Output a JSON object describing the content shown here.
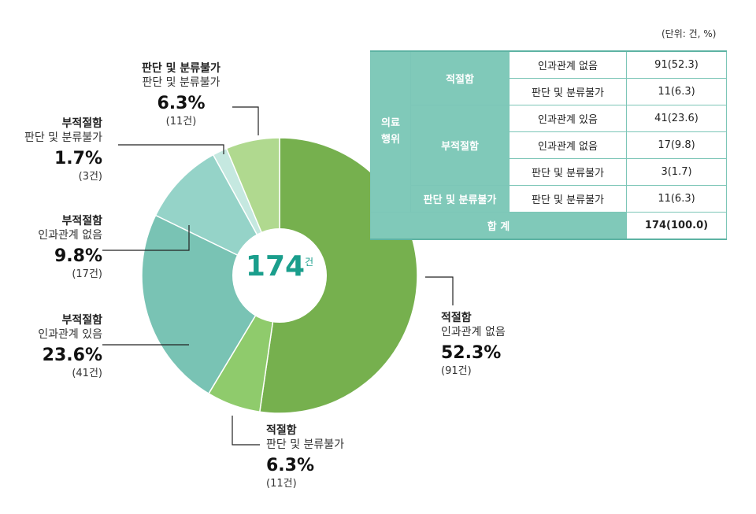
{
  "unit_note": "(단위: 건, %)",
  "center_total": {
    "value": "174",
    "unit": "건"
  },
  "chart_data": {
    "type": "pie",
    "total": 174,
    "slices": [
      {
        "cat": "적절함",
        "sub": "인과관계 없음",
        "pct": "52.3%",
        "cnt": "(91건)",
        "value": 52.3,
        "color": "#76b04e"
      },
      {
        "cat": "적절함",
        "sub": "판단 및 분류불가",
        "pct": "6.3%",
        "cnt": "(11건)",
        "value": 6.3,
        "color": "#8fcb6c"
      },
      {
        "cat": "부적절함",
        "sub": "인과관계 있음",
        "pct": "23.6%",
        "cnt": "(41건)",
        "value": 23.6,
        "color": "#79c3b4"
      },
      {
        "cat": "부적절함",
        "sub": "인과관계 없음",
        "pct": "9.8%",
        "cnt": "(17건)",
        "value": 9.8,
        "color": "#95d3c8"
      },
      {
        "cat": "부적절함",
        "sub": "판단 및 분류불가",
        "pct": "1.7%",
        "cnt": "(3건)",
        "value": 1.7,
        "color": "#c5e8e0"
      },
      {
        "cat": "판단 및 분류불가",
        "sub": "판단 및 분류불가",
        "pct": "6.3%",
        "cnt": "(11건)",
        "value": 6.3,
        "color": "#b0d98f"
      }
    ]
  },
  "table": {
    "group_header": "의료\n행위",
    "rows": [
      {
        "cat": "적절함",
        "sub": "인과관계 없음",
        "val": "91(52.3)"
      },
      {
        "sub": "판단 및 분류불가",
        "val": "11(6.3)"
      },
      {
        "cat": "부적절함",
        "sub": "인과관계 있음",
        "val": "41(23.6)"
      },
      {
        "sub": "인과관계 없음",
        "val": "17(9.8)"
      },
      {
        "sub": "판단 및 분류불가",
        "val": "3(1.7)"
      },
      {
        "cat": "판단 및 분류불가",
        "sub": "판단 및 분류불가",
        "val": "11(6.3)"
      }
    ],
    "total_label": "합 계",
    "total_value": "174(100.0)"
  }
}
